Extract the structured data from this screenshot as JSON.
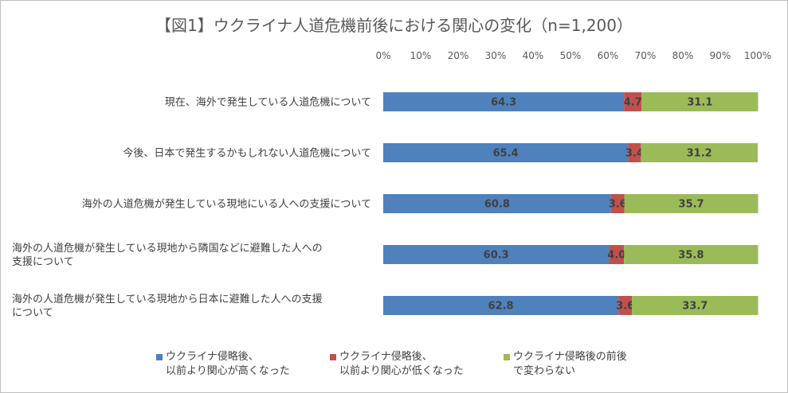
{
  "title": "【図1】ウクライナ人道危機前後における関心の変化（n=1,200）",
  "chart_data": {
    "type": "bar",
    "orientation": "horizontal",
    "stacked": true,
    "xlim": [
      0,
      100
    ],
    "ticks": [
      "0%",
      "10%",
      "20%",
      "30%",
      "40%",
      "50%",
      "60%",
      "70%",
      "80%",
      "90%",
      "100%"
    ],
    "categories": [
      "現在、海外で発生している人道危機について",
      "今後、日本で発生するかもしれない人道危機について",
      "海外の人道危機が発生している現地にいる人への支援について",
      "海外の人道危機が発生している現地から隣国などに避難した人への\n支援について",
      "海外の人道危機が発生している現地から日本に避難した人への支援\nについて"
    ],
    "series": [
      {
        "name": "ウクライナ侵略後、\n以前より関心が高くなった",
        "color": "#4f81bd",
        "values": [
          64.3,
          65.4,
          60.8,
          60.3,
          62.8
        ]
      },
      {
        "name": "ウクライナ侵略後、\n以前より関心が低くなった",
        "color": "#c0504d",
        "values": [
          4.7,
          3.4,
          3.6,
          4.0,
          3.6
        ]
      },
      {
        "name": "ウクライナ侵略後の前後\nで変わらない",
        "color": "#9bbb59",
        "values": [
          31.1,
          31.2,
          35.7,
          35.8,
          33.7
        ]
      }
    ],
    "data_labels": true,
    "grid": false,
    "legend_position": "bottom"
  }
}
